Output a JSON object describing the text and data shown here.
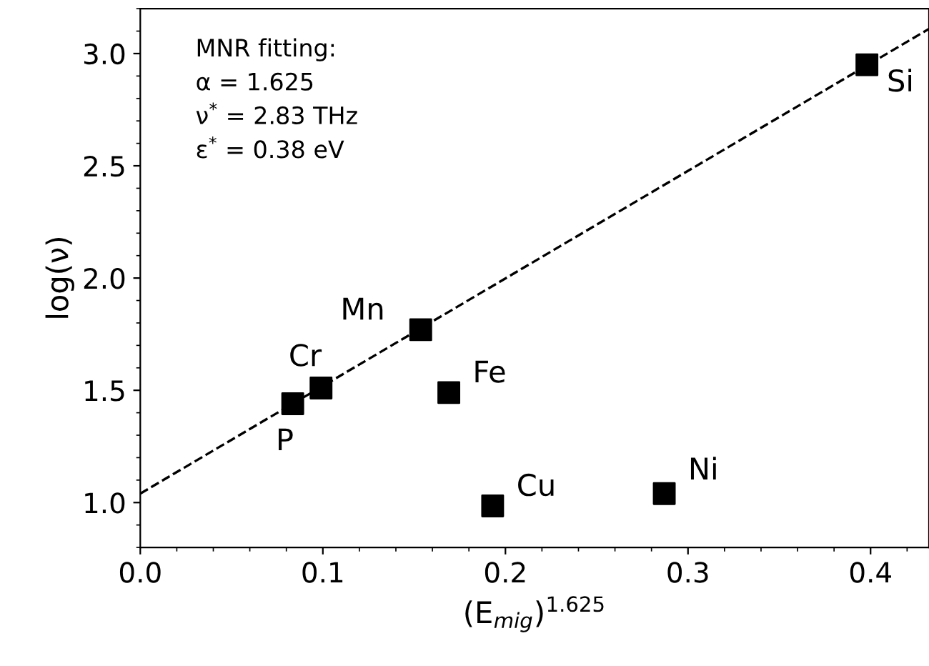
{
  "chart_data": {
    "type": "scatter",
    "xlabel": "(E$_{mig}$)$^{1.625}$",
    "ylabel": "log(ν)",
    "xlim": [
      0,
      0.432
    ],
    "ylim": [
      0.8,
      3.2
    ],
    "xticks": [
      {
        "value": 0,
        "label": "0.0"
      },
      0.1,
      0.2,
      0.3,
      0.4
    ],
    "yticks": [
      {
        "value": 1,
        "label": "1.0"
      },
      1.5,
      {
        "value": 2,
        "label": "2.0"
      },
      2.5,
      {
        "value": 3,
        "label": "3.0"
      }
    ],
    "grid": false,
    "series": [
      {
        "color": "#000000",
        "marker": "square",
        "x": [
          0.0835,
          0.099,
          0.1536,
          0.169,
          0.193,
          0.287,
          0.398
        ],
        "values": [
          1.44,
          1.51,
          1.77,
          1.49,
          0.985,
          1.04,
          2.95
        ]
      },
      {
        "type": "line",
        "color": "#000000",
        "line_style": "dashed",
        "marker": "none",
        "x": [
          0,
          0.432
        ],
        "values": [
          1.04,
          3.11
        ]
      }
    ],
    "annotations": [
      "MNR fitting:\nα = 1.625\nν$^{*}$ = 2.83 THz\nε$^{*}$ = 0.38 eV",
      {
        "text": "P",
        "x": 0.0835,
        "y": 1.44
      },
      {
        "text": "Cr",
        "x": 0.099,
        "y": 1.51
      },
      {
        "text": "Mn",
        "x": 0.1536,
        "y": 1.77
      },
      {
        "text": "Fe",
        "x": 0.169,
        "y": 1.49
      },
      {
        "text": "Cu",
        "x": 0.193,
        "y": 0.985
      },
      {
        "text": "Ni",
        "x": 0.287,
        "y": 1.04
      },
      {
        "text": "Si",
        "x": 0.398,
        "y": 2.95
      }
    ]
  }
}
